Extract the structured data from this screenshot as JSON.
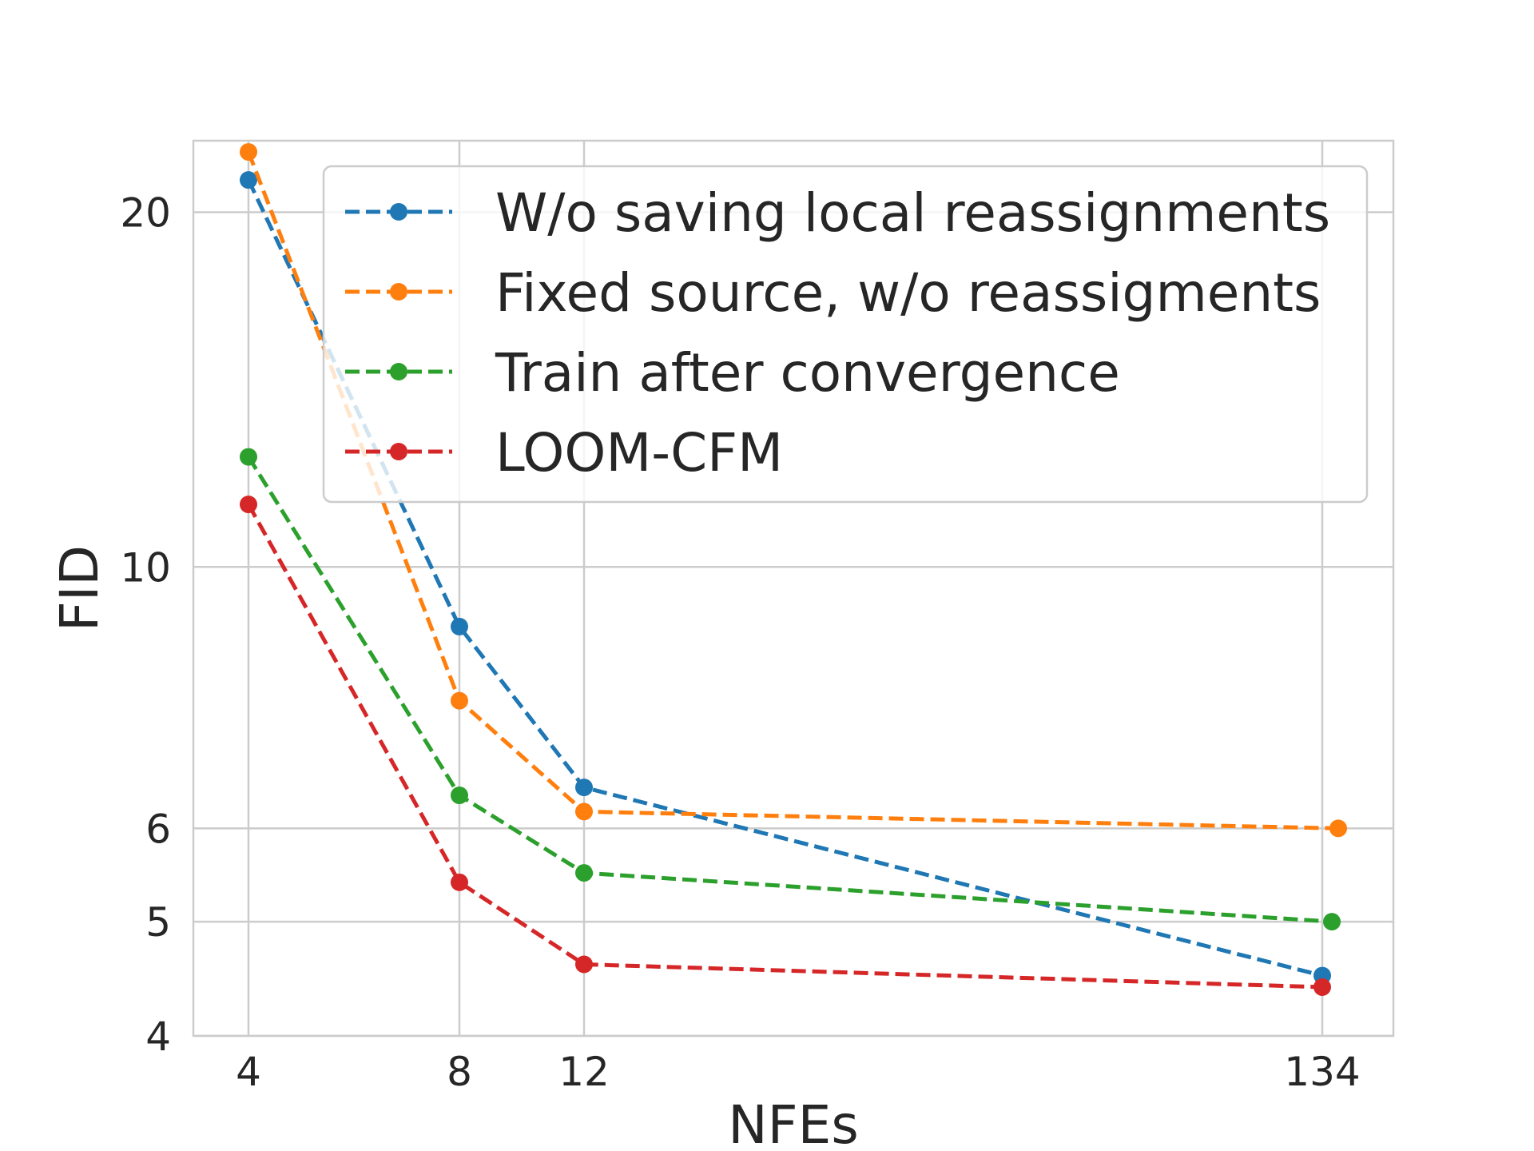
{
  "chart_data": {
    "type": "line",
    "title": "",
    "xlabel": "NFEs",
    "ylabel": "FID",
    "x_scale": "categorical-spaced",
    "y_scale": "log",
    "ylim": [
      4,
      23
    ],
    "x_ticks": [
      "4",
      "8",
      "12",
      "134"
    ],
    "y_ticks": [
      "4",
      "5",
      "6",
      "10",
      "20"
    ],
    "grid": true,
    "legend_position": "top-right",
    "line_style": "dashed",
    "marker": "circle",
    "series": [
      {
        "name": "W/o saving local reassignments",
        "color": "#1f77b4",
        "points": [
          {
            "x": "4",
            "y": 21.3
          },
          {
            "x": "8",
            "y": 8.9
          },
          {
            "x": "12",
            "y": 6.5
          },
          {
            "x": "134",
            "y": 4.5
          }
        ]
      },
      {
        "name": "Fixed source, w/o reassigments",
        "color": "#ff7f0e",
        "points": [
          {
            "x": "4",
            "y": 22.5
          },
          {
            "x": "8",
            "y": 7.7
          },
          {
            "x": "12",
            "y": 6.2
          },
          {
            "x": "134",
            "y": 6.0
          }
        ]
      },
      {
        "name": "Train after convergence",
        "color": "#2ca02c",
        "points": [
          {
            "x": "4",
            "y": 12.4
          },
          {
            "x": "8",
            "y": 6.4
          },
          {
            "x": "12",
            "y": 5.5
          },
          {
            "x": "134",
            "y": 5.0
          }
        ]
      },
      {
        "name": "LOOM-CFM",
        "color": "#d62728",
        "points": [
          {
            "x": "4",
            "y": 11.3
          },
          {
            "x": "8",
            "y": 5.4
          },
          {
            "x": "12",
            "y": 4.6
          },
          {
            "x": "134",
            "y": 4.4
          }
        ]
      }
    ]
  }
}
